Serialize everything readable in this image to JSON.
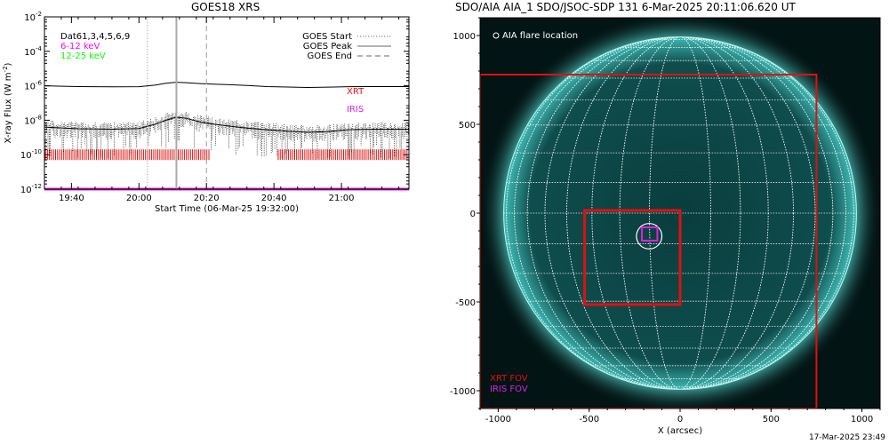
{
  "left_title": "GOES18 XRS",
  "right_title": "SDO/AIA AIA_1 SDO/JSOC-SDP 131  6-Mar-2025 20:11:06.620 UT",
  "footer": "17-Mar-2025 23:49",
  "colors": {
    "background": "#ffffff",
    "sun_disk": "#0f4d4d",
    "sun_limb": "#5ce6e0",
    "grid": "#ffffff",
    "xrt": "#e01010",
    "iris": "#e020e0",
    "low_channel": "#ff00ff",
    "high_channel": "#00ff00"
  },
  "chart_data": [
    {
      "type": "line",
      "title": "GOES18 XRS",
      "xlabel": "Start Time (06-Mar-25 19:32:00)",
      "ylabel": "X-ray Flux (W m^-2)",
      "ylabel_main": "X-ray Flux (W m",
      "ylabel_sup": "-2",
      "ylabel_end": ")",
      "yscale": "log",
      "ylim": [
        1e-12,
        0.01
      ],
      "xlim_minutes": [
        0,
        108
      ],
      "x_tick_labels": [
        "19:40",
        "20:00",
        "20:20",
        "20:40",
        "21:00"
      ],
      "x_tick_minutes": [
        8,
        28,
        48,
        68,
        88
      ],
      "y_tick_labels": [
        {
          "base": "10",
          "exp": "-12",
          "value": 1e-12
        },
        {
          "base": "10",
          "exp": "-10",
          "value": 1e-10
        },
        {
          "base": "10",
          "exp": "-8",
          "value": 1e-08
        },
        {
          "base": "10",
          "exp": "-6",
          "value": 1e-06
        },
        {
          "base": "10",
          "exp": "-4",
          "value": 0.0001
        },
        {
          "base": "10",
          "exp": "-2",
          "value": 0.01
        }
      ],
      "annotation_quality": "Dat61,3,4,5,6,9",
      "channels": [
        {
          "name": "6-12 keV",
          "color": "#ff00ff"
        },
        {
          "name": "12-25 keV",
          "color": "#00ff00"
        }
      ],
      "legend": [
        {
          "name": "GOES Start",
          "style": "dotted"
        },
        {
          "name": "GOES Peak",
          "style": "solid"
        },
        {
          "name": "GOES End",
          "style": "dashed"
        }
      ],
      "event_lines_minutes": {
        "start": 30.5,
        "peak": 39.1,
        "end": 48.0
      },
      "series": [
        {
          "name": "long channel",
          "x_minutes": [
            0,
            10,
            20,
            28,
            33,
            36,
            39,
            42,
            46,
            50,
            55,
            60,
            66,
            72,
            78,
            84,
            90,
            96,
            102,
            108
          ],
          "values": [
            1e-06,
            9e-07,
            8.7e-07,
            8.8e-07,
            1.1e-06,
            1.4e-06,
            1.6e-06,
            1.5e-06,
            1.35e-06,
            1.25e-06,
            1.15e-06,
            1.05e-06,
            9e-07,
            8.5e-07,
            8e-07,
            8.3e-07,
            8.8e-07,
            9e-07,
            9e-07,
            9e-07
          ]
        },
        {
          "name": "short channel",
          "x_minutes": [
            0,
            10,
            20,
            28,
            33,
            36,
            39,
            42,
            46,
            50,
            55,
            60,
            66,
            72,
            78,
            84,
            90,
            96,
            102,
            108
          ],
          "values": [
            4e-09,
            3.2e-09,
            3e-09,
            3.3e-09,
            6e-09,
            1e-08,
            1.5e-08,
            1.3e-08,
            8e-09,
            6e-09,
            4.5e-09,
            3.5e-09,
            2.8e-09,
            2.3e-09,
            2e-09,
            2.2e-09,
            2.8e-09,
            3e-09,
            3e-09,
            3e-09
          ]
        }
      ],
      "coverage": [
        {
          "name": "XRT",
          "color": "#e01010",
          "value": 1e-10,
          "intervals_minutes": [
            [
              0,
              49
            ],
            [
              69,
              108
            ]
          ]
        },
        {
          "name": "IRIS",
          "color": "#e020e0",
          "value": 1e-12,
          "intervals_minutes": [
            [
              0,
              108
            ]
          ]
        }
      ]
    },
    {
      "type": "scatter",
      "title": "SDO/AIA AIA_1 SDO/JSOC-SDP 131  6-Mar-2025 20:11:06.620 UT",
      "xlabel": "X (arcsec)",
      "ylabel": "",
      "xlim": [
        -1100,
        1100
      ],
      "ylim": [
        -1100,
        1100
      ],
      "x_tick_labels": [
        "-1000",
        "-500",
        "0",
        "500",
        "1000"
      ],
      "x_tick_values": [
        -1000,
        -500,
        0,
        500,
        1000
      ],
      "y_tick_labels": [
        "-1000",
        "-500",
        "0",
        "500",
        "1000"
      ],
      "y_tick_values": [
        -1000,
        -500,
        0,
        500,
        1000
      ],
      "solar_radius_arcsec": 970,
      "grid_spacing_deg": 10,
      "legend_label": "AIA flare location",
      "flare_location": {
        "x": -170,
        "y": -130
      },
      "flare_circle_radius_arcsec": 70,
      "fov_boxes": [
        {
          "name": "XRT FOV",
          "color": "#e01010",
          "x_range": [
            -1100,
            750
          ],
          "y_range": [
            -1100,
            780
          ]
        },
        {
          "name": "XRT FOV",
          "color": "#e01010",
          "x_range": [
            -525,
            0
          ],
          "y_range": [
            -515,
            15
          ]
        },
        {
          "name": "IRIS FOV",
          "color": "#e020e0",
          "x_range": [
            -210,
            -125
          ],
          "y_range": [
            -155,
            -80
          ]
        }
      ],
      "fov_labels": [
        {
          "name": "XRT FOV",
          "color": "#e01010"
        },
        {
          "name": "IRIS FOV",
          "color": "#e020e0"
        }
      ]
    }
  ]
}
